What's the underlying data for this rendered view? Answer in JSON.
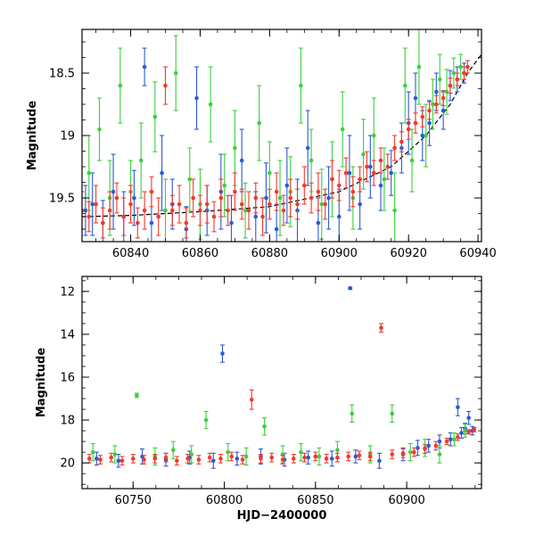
{
  "chart_data": [
    {
      "type": "scatter",
      "panel": "top",
      "title": "",
      "xlabel": "",
      "ylabel": "Magnitude",
      "xlim": [
        60826,
        60941
      ],
      "ylim": [
        19.85,
        18.15
      ],
      "y_inverted": true,
      "xticks": [
        60840,
        60860,
        60880,
        60900,
        60920,
        60940
      ],
      "yticks": [
        18.5,
        19,
        19.5
      ],
      "error_bars": true,
      "model_curve": {
        "color": "#000000",
        "style": "dashed",
        "x": [
          60826,
          60840,
          60860,
          60880,
          60900,
          60915,
          60925,
          60932,
          60937,
          60941
        ],
        "y": [
          19.65,
          19.64,
          19.61,
          19.57,
          19.45,
          19.25,
          19.0,
          18.75,
          18.5,
          18.35
        ]
      },
      "series": [
        {
          "color": "#2a5bd7",
          "x": [
            60827,
            60829,
            60832,
            60835,
            60838,
            60841,
            60844,
            60846,
            60849,
            60852,
            60856,
            60859,
            60862,
            60866,
            60869,
            60872,
            60876,
            60879,
            60882,
            60885,
            60888,
            60891,
            60894,
            60897,
            60900,
            60903,
            60906,
            60909,
            60912,
            60915,
            60918,
            60920,
            60922,
            60924,
            60926,
            60928,
            60930,
            60932,
            60934,
            60936
          ],
          "y": [
            19.6,
            19.55,
            19.7,
            19.45,
            19.65,
            19.5,
            18.45,
            19.7,
            19.3,
            19.55,
            19.75,
            18.7,
            19.6,
            19.45,
            19.7,
            19.2,
            19.65,
            19.5,
            19.75,
            19.4,
            19.6,
            19.1,
            19.7,
            19.5,
            19.65,
            19.3,
            19.55,
            19.25,
            19.4,
            19.3,
            19.1,
            18.9,
            18.7,
            19.0,
            18.9,
            18.65,
            18.8,
            18.6,
            18.55,
            18.5
          ],
          "yerr": [
            0.2,
            0.25,
            0.18,
            0.3,
            0.2,
            0.22,
            0.15,
            0.25,
            0.3,
            0.2,
            0.18,
            0.25,
            0.2,
            0.3,
            0.22,
            0.25,
            0.2,
            0.28,
            0.2,
            0.3,
            0.25,
            0.3,
            0.2,
            0.25,
            0.22,
            0.3,
            0.2,
            0.25,
            0.2,
            0.18,
            0.2,
            0.25,
            0.2,
            0.2,
            0.18,
            0.15,
            0.15,
            0.12,
            0.1,
            0.08
          ]
        },
        {
          "color": "#3ecf3e",
          "x": [
            60828,
            60831,
            60834,
            60837,
            60840,
            60843,
            60847,
            60850,
            60853,
            60857,
            60860,
            60863,
            60867,
            60870,
            60873,
            60877,
            60880,
            60883,
            60886,
            60889,
            60892,
            60895,
            60898,
            60901,
            60904,
            60907,
            60910,
            60913,
            60916,
            60919,
            60921,
            60923,
            60925,
            60927,
            60929,
            60931,
            60933,
            60935
          ],
          "y": [
            19.3,
            18.95,
            19.5,
            18.6,
            19.45,
            19.2,
            18.85,
            19.6,
            18.5,
            19.35,
            19.55,
            18.75,
            19.4,
            19.1,
            19.6,
            18.9,
            19.3,
            19.5,
            19.45,
            18.6,
            19.2,
            19.55,
            19.35,
            18.95,
            19.5,
            19.15,
            19.0,
            19.35,
            19.6,
            18.6,
            19.2,
            18.45,
            19.0,
            18.75,
            18.55,
            18.65,
            18.5,
            18.45
          ],
          "yerr": [
            0.3,
            0.25,
            0.3,
            0.3,
            0.25,
            0.3,
            0.28,
            0.25,
            0.3,
            0.25,
            0.28,
            0.3,
            0.25,
            0.3,
            0.22,
            0.3,
            0.25,
            0.3,
            0.28,
            0.3,
            0.25,
            0.28,
            0.3,
            0.3,
            0.25,
            0.28,
            0.3,
            0.25,
            0.3,
            0.3,
            0.25,
            0.3,
            0.25,
            0.2,
            0.2,
            0.18,
            0.12,
            0.1
          ]
        },
        {
          "color": "#f23a2a",
          "x": [
            60826,
            60828,
            60830,
            60832,
            60834,
            60836,
            60838,
            60840,
            60842,
            60844,
            60846,
            60848,
            60850,
            60852,
            60854,
            60856,
            60858,
            60860,
            60862,
            60864,
            60866,
            60868,
            60870,
            60872,
            60874,
            60876,
            60878,
            60880,
            60882,
            60884,
            60886,
            60888,
            60890,
            60892,
            60894,
            60896,
            60898,
            60900,
            60902,
            60904,
            60906,
            60908,
            60910,
            60912,
            60914,
            60916,
            60918,
            60920,
            60922,
            60924,
            60926,
            60928,
            60930,
            60932,
            60934,
            60936,
            60937
          ],
          "y": [
            19.6,
            19.65,
            19.55,
            19.7,
            19.6,
            19.5,
            19.65,
            19.55,
            19.7,
            19.6,
            19.45,
            19.65,
            18.6,
            19.6,
            19.55,
            19.7,
            19.5,
            19.6,
            19.55,
            19.65,
            19.5,
            19.6,
            19.45,
            19.55,
            19.6,
            19.5,
            19.65,
            19.55,
            19.45,
            19.6,
            19.5,
            19.55,
            19.4,
            19.5,
            19.45,
            19.55,
            19.35,
            19.4,
            19.3,
            19.45,
            19.35,
            19.25,
            19.3,
            19.2,
            19.25,
            19.1,
            19.05,
            18.95,
            18.9,
            18.85,
            18.8,
            18.75,
            18.7,
            18.6,
            18.55,
            18.5,
            18.45
          ],
          "yerr": [
            0.15,
            0.12,
            0.15,
            0.12,
            0.15,
            0.12,
            0.15,
            0.15,
            0.12,
            0.15,
            0.12,
            0.15,
            0.15,
            0.12,
            0.15,
            0.12,
            0.15,
            0.12,
            0.15,
            0.12,
            0.15,
            0.12,
            0.15,
            0.12,
            0.15,
            0.12,
            0.15,
            0.12,
            0.15,
            0.12,
            0.15,
            0.12,
            0.15,
            0.12,
            0.15,
            0.12,
            0.15,
            0.12,
            0.12,
            0.12,
            0.1,
            0.12,
            0.1,
            0.1,
            0.1,
            0.1,
            0.08,
            0.08,
            0.08,
            0.08,
            0.07,
            0.07,
            0.06,
            0.06,
            0.05,
            0.05,
            0.05
          ]
        }
      ]
    },
    {
      "type": "scatter",
      "panel": "bottom",
      "title": "",
      "xlabel": "HJD−2400000",
      "ylabel": "Magnitude",
      "xlim": [
        60722,
        60941
      ],
      "ylim": [
        21.2,
        11.3
      ],
      "y_inverted": true,
      "xticks": [
        60750,
        60800,
        60850,
        60900
      ],
      "yticks": [
        12,
        14,
        16,
        18,
        20
      ],
      "error_bars": true,
      "series": [
        {
          "color": "#2a5bd7",
          "x": [
            60730,
            60742,
            60755,
            60768,
            60781,
            60794,
            60799,
            60807,
            60820,
            60833,
            60846,
            60859,
            60869,
            60872,
            60885,
            60898,
            60906,
            60912,
            60918,
            60924,
            60928,
            60930,
            60932,
            60934,
            60936
          ],
          "y": [
            19.8,
            19.9,
            19.7,
            19.85,
            19.75,
            19.9,
            14.9,
            19.8,
            19.7,
            19.85,
            19.75,
            19.8,
            11.85,
            19.7,
            19.9,
            19.6,
            19.3,
            19.2,
            19.0,
            18.9,
            17.4,
            18.6,
            18.4,
            17.9,
            18.5
          ],
          "yerr": [
            0.3,
            0.3,
            0.35,
            0.3,
            0.3,
            0.35,
            0.4,
            0.3,
            0.35,
            0.3,
            0.3,
            0.35,
            0.05,
            0.3,
            0.35,
            0.3,
            0.35,
            0.3,
            0.3,
            0.3,
            0.4,
            0.25,
            0.25,
            0.3,
            0.2
          ]
        },
        {
          "color": "#3ecf3e",
          "x": [
            60728,
            60740,
            60752,
            60762,
            60772,
            60782,
            60790,
            60802,
            60812,
            60822,
            60832,
            60842,
            60852,
            60862,
            60870,
            60880,
            60892,
            60902,
            60910,
            60918,
            60926,
            60932
          ],
          "y": [
            19.5,
            19.6,
            16.85,
            19.7,
            19.4,
            19.6,
            18.0,
            19.5,
            19.7,
            18.3,
            19.6,
            19.5,
            19.7,
            19.4,
            17.7,
            19.6,
            17.7,
            19.5,
            19.3,
            19.6,
            18.9,
            18.5
          ],
          "yerr": [
            0.4,
            0.4,
            0.1,
            0.4,
            0.4,
            0.4,
            0.4,
            0.4,
            0.4,
            0.4,
            0.4,
            0.4,
            0.4,
            0.4,
            0.4,
            0.4,
            0.4,
            0.4,
            0.4,
            0.4,
            0.3,
            0.3
          ]
        },
        {
          "color": "#f23a2a",
          "x": [
            60726,
            60732,
            60738,
            60744,
            60750,
            60756,
            60762,
            60768,
            60774,
            60780,
            60786,
            60792,
            60798,
            60804,
            60810,
            60815,
            60820,
            60826,
            60832,
            60838,
            60844,
            60850,
            60856,
            60862,
            60868,
            60874,
            60880,
            60886,
            60892,
            60898,
            60904,
            60910,
            60916,
            60922,
            60928,
            60934,
            60937
          ],
          "y": [
            19.8,
            19.85,
            19.75,
            19.9,
            19.8,
            19.85,
            19.8,
            19.75,
            19.9,
            19.8,
            19.85,
            19.75,
            19.8,
            19.7,
            19.85,
            17.05,
            19.8,
            19.75,
            19.85,
            19.8,
            19.75,
            19.7,
            19.8,
            19.75,
            19.7,
            19.65,
            19.7,
            13.7,
            19.6,
            19.55,
            19.5,
            19.35,
            19.2,
            19.0,
            18.8,
            18.55,
            18.45
          ],
          "yerr": [
            0.2,
            0.2,
            0.2,
            0.2,
            0.2,
            0.2,
            0.2,
            0.2,
            0.2,
            0.2,
            0.2,
            0.2,
            0.2,
            0.2,
            0.2,
            0.45,
            0.2,
            0.2,
            0.2,
            0.2,
            0.2,
            0.2,
            0.2,
            0.2,
            0.2,
            0.2,
            0.2,
            0.2,
            0.2,
            0.2,
            0.2,
            0.2,
            0.2,
            0.15,
            0.15,
            0.1,
            0.1
          ]
        }
      ]
    }
  ]
}
